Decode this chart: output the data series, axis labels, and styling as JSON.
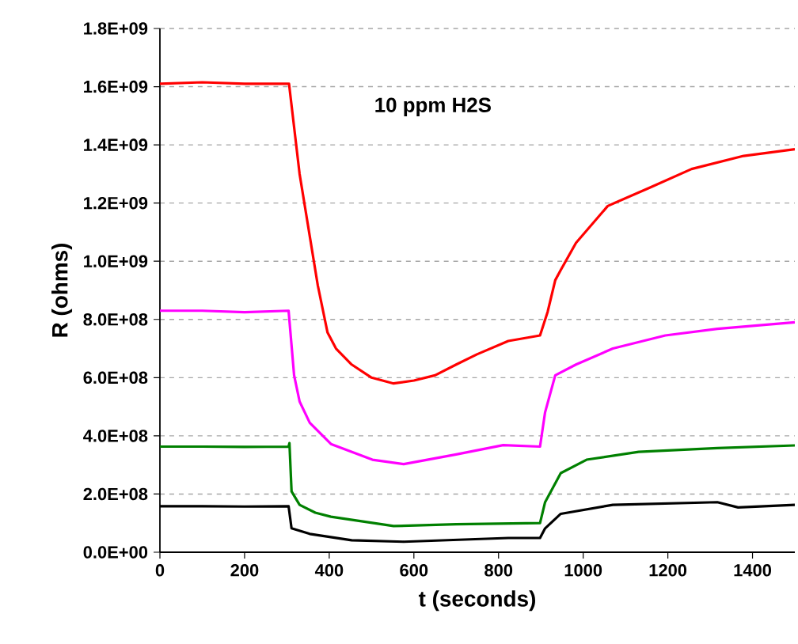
{
  "chart_data": {
    "type": "line",
    "xlabel": "t (seconds)",
    "ylabel": "R (ohms)",
    "annotations": [
      "10 ppm H2S"
    ],
    "xlim": [
      0,
      1500
    ],
    "xticks": [
      0,
      200,
      400,
      600,
      800,
      1000,
      1200,
      1400
    ],
    "ylim": [
      0,
      1800000000
    ],
    "yticks": [
      {
        "value": 0,
        "label": "0.0E+00"
      },
      {
        "value": 200000000,
        "label": "2.0E+08"
      },
      {
        "value": 400000000,
        "label": "4.0E+08"
      },
      {
        "value": 600000000,
        "label": "6.0E+08"
      },
      {
        "value": 800000000,
        "label": "8.0E+08"
      },
      {
        "value": 1000000000,
        "label": "1.0E+09"
      },
      {
        "value": 1200000000,
        "label": "1.2E+09"
      },
      {
        "value": 1400000000,
        "label": "1.4E+09"
      },
      {
        "value": 1600000000,
        "label": "1.6E+09"
      },
      {
        "value": 1800000000,
        "label": "1.8E+09"
      }
    ],
    "grid": "y",
    "series": [
      {
        "color": "#ff0000",
        "x": [
          0,
          100,
          200,
          305,
          330,
          373,
          396,
          416,
          453,
          500,
          552,
          600,
          650,
          700,
          749,
          823,
          898,
          916,
          934,
          947,
          983,
          1058,
          1157,
          1256,
          1379,
          1500
        ],
        "values": [
          1610000000,
          1615000000,
          1610000000,
          1610000000,
          1300000000,
          917000000,
          755000000,
          700000000,
          645000000,
          600000000,
          580000000,
          590000000,
          608000000,
          645000000,
          680000000,
          726000000,
          745000000,
          826000000,
          935000000,
          970000000,
          1063000000,
          1190000000,
          1253000000,
          1317000000,
          1362000000,
          1385000000
        ]
      },
      {
        "color": "#ff00ff",
        "x": [
          0,
          100,
          200,
          304,
          317,
          330,
          354,
          404,
          502,
          576,
          700,
          811,
          898,
          910,
          934,
          983,
          1070,
          1194,
          1317,
          1500
        ],
        "values": [
          830000000,
          830000000,
          825000000,
          830000000,
          608000000,
          518000000,
          445000000,
          372000000,
          318000000,
          303000000,
          336000000,
          368000000,
          363000000,
          481000000,
          608000000,
          645000000,
          700000000,
          745000000,
          768000000,
          790000000
        ]
      },
      {
        "color": "#008000",
        "x": [
          0,
          100,
          200,
          304,
          306,
          311,
          330,
          367,
          404,
          552,
          700,
          898,
          910,
          947,
          1008,
          1131,
          1317,
          1500
        ],
        "values": [
          363000000,
          363000000,
          362000000,
          363000000,
          375000000,
          209000000,
          163000000,
          136000000,
          122000000,
          90000000,
          96000000,
          100000000,
          172000000,
          272000000,
          318000000,
          345000000,
          358000000,
          367000000
        ]
      },
      {
        "color": "#000000",
        "x": [
          0,
          100,
          200,
          304,
          311,
          354,
          453,
          576,
          823,
          898,
          910,
          947,
          1070,
          1317,
          1366,
          1500
        ],
        "values": [
          158000000,
          158000000,
          157000000,
          158000000,
          82000000,
          63000000,
          41000000,
          36000000,
          49000000,
          49000000,
          82000000,
          132000000,
          163000000,
          172000000,
          154000000,
          163000000
        ]
      }
    ]
  }
}
